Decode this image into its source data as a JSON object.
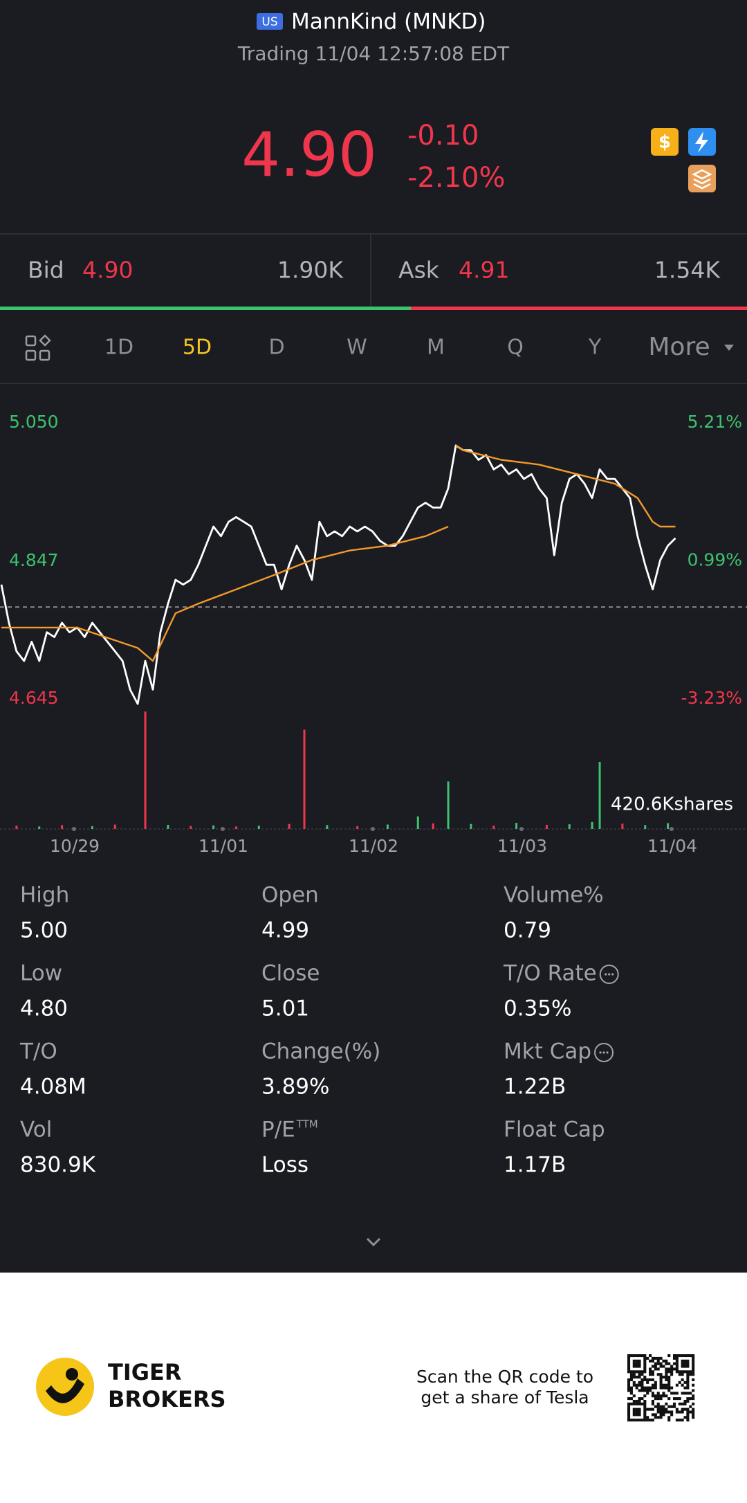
{
  "header": {
    "badge": "US",
    "title": "MannKind (MNKD)",
    "subtitle": "Trading 11/04 12:57:08 EDT"
  },
  "quote": {
    "price": "4.90",
    "change": "-0.10",
    "change_pct": "-2.10%"
  },
  "bid_ask": {
    "bid_label": "Bid",
    "bid": "4.90",
    "bid_size": "1.90K",
    "ask_label": "Ask",
    "ask": "4.91",
    "ask_size": "1.54K",
    "bid_share": 55
  },
  "tabs": {
    "items": [
      "1D",
      "5D",
      "D",
      "W",
      "M",
      "Q",
      "Y",
      "More"
    ],
    "active": 1
  },
  "chart_data": {
    "type": "line",
    "ylim": [
      4.645,
      5.05
    ],
    "yticks": [
      4.645,
      4.847,
      {
        "value": 5.05,
        "label": "5.050"
      }
    ],
    "y2lim": [
      -3.23,
      5.21
    ],
    "y2ticks": [
      {
        "value": -3.23,
        "label": "-3.23%"
      },
      {
        "value": 0.99,
        "label": "0.99%"
      },
      {
        "value": 5.21,
        "label": "5.21%"
      }
    ],
    "reference": 4.8,
    "up_color": "#3cc36e",
    "down_color": "#f0364c",
    "x_labels": [
      "10/29",
      "11/01",
      "11/02",
      "11/03",
      "11/04"
    ],
    "series": [
      {
        "color": "#ffffff",
        "values": [
          4.833,
          4.777,
          4.735,
          4.721,
          4.749,
          4.721,
          4.763,
          4.756,
          4.777,
          4.763,
          4.77,
          4.756,
          4.777,
          4.763,
          4.749,
          4.735,
          4.721,
          4.679,
          4.658,
          4.721,
          4.679,
          4.763,
          4.805,
          4.84,
          4.833,
          4.84,
          4.862,
          4.89,
          4.918,
          4.904,
          4.925,
          4.932,
          4.925,
          4.918,
          4.89,
          4.862,
          4.862,
          4.826,
          4.862,
          4.89,
          4.869,
          4.84,
          4.925,
          4.904,
          4.911,
          4.904,
          4.918,
          4.911,
          4.918,
          4.911,
          4.897,
          4.89,
          4.89,
          4.904,
          4.925,
          4.946,
          4.953,
          4.946,
          4.946,
          4.974,
          5.037,
          5.03,
          5.03,
          5.016,
          5.023,
          5.002,
          5.009,
          4.995,
          5.002,
          4.988,
          4.995,
          4.974,
          4.96,
          4.876,
          4.953,
          4.988,
          4.995,
          4.981,
          4.96,
          5.002,
          4.988,
          4.988,
          4.974,
          4.96,
          4.904,
          4.862,
          4.826,
          4.869,
          4.89,
          4.901
        ]
      },
      {
        "color": "#f39a2b",
        "x": [
          0,
          10,
          18,
          20,
          23,
          26,
          31,
          36,
          41,
          46,
          51,
          56,
          59,
          59.5,
          60,
          61,
          66,
          71,
          76,
          81,
          84,
          86,
          87,
          89
        ],
        "values": [
          4.77,
          4.77,
          4.74,
          4.721,
          4.791,
          4.805,
          4.826,
          4.847,
          4.869,
          4.883,
          4.89,
          4.904,
          4.918,
          null,
          5.037,
          5.03,
          5.016,
          5.009,
          4.995,
          4.981,
          4.96,
          4.925,
          4.918,
          4.918
        ]
      }
    ],
    "volume": {
      "label": "420.6Kshares",
      "ylim": [
        0,
        420.6
      ],
      "x": [
        2,
        5,
        8,
        12,
        15,
        19,
        22,
        25,
        28,
        31,
        34,
        38,
        40,
        43,
        47,
        51,
        55,
        57,
        59,
        62,
        65,
        68,
        72,
        75,
        78,
        79,
        82,
        85,
        88
      ],
      "values": [
        12,
        9,
        14,
        10,
        16,
        420,
        15,
        11,
        13,
        9,
        12,
        18,
        355,
        14,
        10,
        16,
        45,
        20,
        170,
        18,
        12,
        22,
        15,
        17,
        25,
        240,
        19,
        14,
        21
      ],
      "colors": [
        "#f0364c",
        "#3cc36e",
        "#f0364c",
        "#3cc36e",
        "#f0364c",
        "#f0364c",
        "#3cc36e",
        "#f0364c",
        "#3cc36e",
        "#f0364c",
        "#3cc36e",
        "#f0364c",
        "#f0364c",
        "#3cc36e",
        "#f0364c",
        "#3cc36e",
        "#3cc36e",
        "#f0364c",
        "#3cc36e",
        "#3cc36e",
        "#f0364c",
        "#3cc36e",
        "#f0364c",
        "#3cc36e",
        "#3cc36e",
        "#3cc36e",
        "#f0364c",
        "#3cc36e",
        "#3cc36e"
      ]
    }
  },
  "stats": [
    {
      "label": "High",
      "value": "5.00"
    },
    {
      "label": "Open",
      "value": "4.99"
    },
    {
      "label": "Volume%",
      "value": "0.79"
    },
    {
      "label": "Low",
      "value": "4.80"
    },
    {
      "label": "Close",
      "value": "5.01"
    },
    {
      "label": "T/O Rate",
      "value": "0.35%",
      "info": true
    },
    {
      "label": "T/O",
      "value": "4.08M"
    },
    {
      "label": "Change(%)",
      "value": "3.89%"
    },
    {
      "label": "Mkt Cap",
      "value": "1.22B",
      "info": true
    },
    {
      "label": "Vol",
      "value": "830.9K"
    },
    {
      "label": "P/E",
      "label_sup": "TTM",
      "value": "Loss"
    },
    {
      "label": "Float Cap",
      "value": "1.17B"
    }
  ],
  "footer": {
    "brand_line1": "TIGER",
    "brand_line2": "BROKERS",
    "promo_line1": "Scan the QR code to",
    "promo_line2": "get a share of Tesla"
  }
}
